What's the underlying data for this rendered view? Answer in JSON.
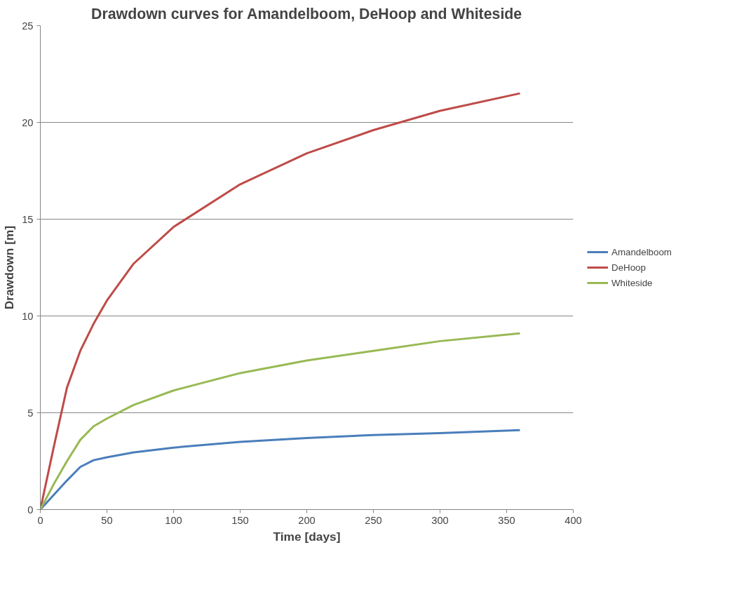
{
  "chart_data": {
    "type": "line",
    "title": "Drawdown curves for Amandelboom, DeHoop and Whiteside",
    "xlabel": "Time [days]",
    "ylabel": "Drawdown [m]",
    "x": [
      0,
      10,
      20,
      30,
      40,
      50,
      70,
      100,
      150,
      200,
      250,
      300,
      360
    ],
    "series": [
      {
        "name": "Amandelboom",
        "color": "#4a7ebb",
        "values": [
          0,
          0.75,
          1.5,
          2.2,
          2.55,
          2.7,
          2.95,
          3.2,
          3.5,
          3.7,
          3.85,
          3.95,
          4.1
        ]
      },
      {
        "name": "DeHoop",
        "color": "#be4b48",
        "values": [
          0,
          3.2,
          6.3,
          8.2,
          9.6,
          10.8,
          12.7,
          14.6,
          16.8,
          18.4,
          19.6,
          20.6,
          21.5
        ]
      },
      {
        "name": "Whiteside",
        "color": "#98b954",
        "values": [
          0,
          1.3,
          2.5,
          3.6,
          4.3,
          4.7,
          5.4,
          6.15,
          7.05,
          7.7,
          8.2,
          8.7,
          9.1
        ]
      }
    ],
    "xlim": [
      0,
      400
    ],
    "xticks": [
      0,
      50,
      100,
      150,
      200,
      250,
      300,
      350,
      400
    ],
    "ylim": [
      0,
      25
    ],
    "yticks": [
      0,
      5,
      10,
      15,
      20,
      25
    ],
    "grid": "y",
    "legend": "right",
    "marker": "none",
    "line_style": "solid"
  }
}
